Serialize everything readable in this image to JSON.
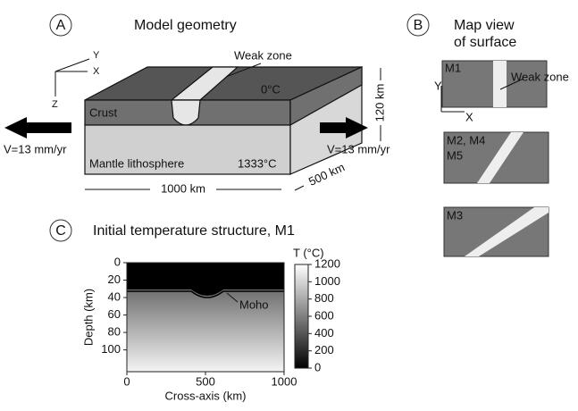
{
  "panel_a": {
    "letter": "A",
    "title": "Model geometry",
    "axis_y": "Y",
    "axis_x": "X",
    "axis_z": "Z",
    "weak_zone": "Weak zone",
    "surface_temp": "0°C",
    "crust": "Crust",
    "mantle": "Mantle lithosphere",
    "base_temp": "1333°C",
    "velocity_left": "V=13 mm/yr",
    "velocity_right": "V=13 mm/yr",
    "depth": "120 km",
    "length": "1000 km",
    "width": "500 km"
  },
  "panel_b": {
    "letter": "B",
    "title_line1": "Map view",
    "title_line2": "of surface",
    "models": [
      "M1",
      "M2, M4",
      "M5",
      "M3"
    ],
    "weak_zone": "Weak zone",
    "axis_y": "Y",
    "axis_x": "X"
  },
  "chart_data": {
    "type": "heatmap",
    "letter": "C",
    "title": "Initial temperature structure, M1",
    "xlabel": "Cross-axis (km)",
    "ylabel": "Depth (km)",
    "xlim": [
      0,
      1000
    ],
    "xticks": [
      0,
      500,
      1000
    ],
    "ylim": [
      0,
      125
    ],
    "yticks": [
      0,
      20,
      40,
      60,
      80,
      100
    ],
    "colorbar_label": "T (°C)",
    "clim": [
      0,
      1200
    ],
    "cticks": [
      0,
      200,
      400,
      600,
      800,
      1000,
      1200
    ],
    "annotation": "Moho"
  }
}
